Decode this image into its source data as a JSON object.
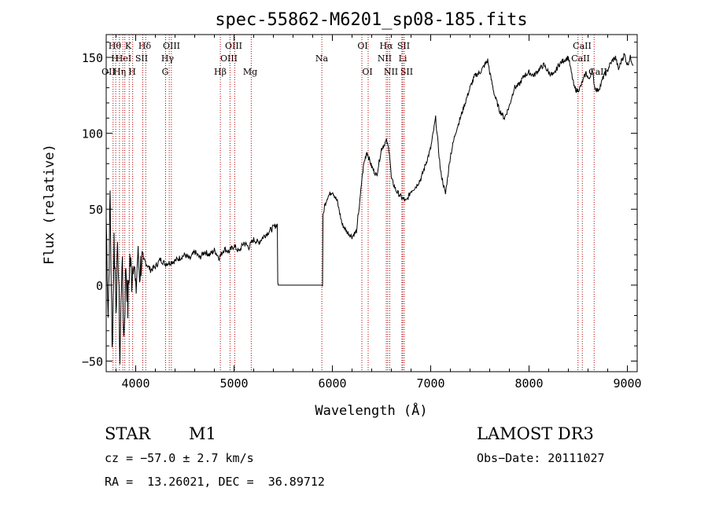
{
  "chart_data": {
    "type": "line",
    "title": "spec-55862-M6201_sp08-185.fits",
    "xlabel": "Wavelength (Å)",
    "ylabel": "Flux (relative)",
    "xlim": [
      3700,
      9100
    ],
    "ylim": [
      -57,
      165
    ],
    "xticks": [
      4000,
      5000,
      6000,
      7000,
      8000,
      9000
    ],
    "yticks": [
      -50,
      0,
      50,
      100,
      150
    ],
    "ytick_labels": [
      "−50",
      "0",
      "50",
      "100",
      "150"
    ],
    "grid": false,
    "series": [
      {
        "name": "flux",
        "x": [
          3700,
          3720,
          3740,
          3760,
          3780,
          3800,
          3820,
          3840,
          3860,
          3880,
          3900,
          3920,
          3940,
          3960,
          3980,
          4000,
          4020,
          4040,
          4060,
          4080,
          4100,
          4150,
          4200,
          4250,
          4300,
          4350,
          4400,
          4450,
          4500,
          4550,
          4600,
          4650,
          4700,
          4750,
          4800,
          4850,
          4900,
          4950,
          5000,
          5050,
          5100,
          5150,
          5200,
          5250,
          5300,
          5350,
          5400,
          5440,
          5445,
          5450,
          5700,
          5900,
          5905,
          5920,
          5950,
          6000,
          6050,
          6100,
          6150,
          6200,
          6250,
          6260,
          6280,
          6300,
          6320,
          6350,
          6400,
          6450,
          6500,
          6550,
          6580,
          6600,
          6650,
          6700,
          6750,
          6800,
          6850,
          6900,
          6950,
          7000,
          7050,
          7100,
          7150,
          7200,
          7250,
          7300,
          7350,
          7400,
          7450,
          7500,
          7550,
          7580,
          7600,
          7650,
          7700,
          7750,
          7800,
          7850,
          7900,
          7950,
          8000,
          8050,
          8100,
          8150,
          8200,
          8250,
          8300,
          8350,
          8400,
          8430,
          8460,
          8490,
          8520,
          8550,
          8580,
          8610,
          8640,
          8670,
          8700,
          8730,
          8760,
          8790,
          8820,
          8850,
          8880,
          8910,
          8940,
          8970,
          9000,
          9030,
          9060
        ],
        "values": [
          45,
          -20,
          60,
          -45,
          30,
          -10,
          25,
          -50,
          20,
          -35,
          15,
          -15,
          18,
          5,
          22,
          -8,
          20,
          8,
          18,
          6,
          15,
          10,
          12,
          17,
          14,
          15,
          16,
          18,
          20,
          17,
          22,
          18,
          22,
          20,
          23,
          18,
          24,
          22,
          26,
          22,
          28,
          25,
          30,
          28,
          32,
          35,
          38,
          40,
          2,
          0,
          0,
          0,
          45,
          52,
          58,
          62,
          55,
          40,
          35,
          32,
          36,
          45,
          55,
          70,
          80,
          88,
          78,
          72,
          90,
          95,
          88,
          70,
          62,
          58,
          55,
          62,
          65,
          70,
          80,
          90,
          110,
          75,
          60,
          85,
          100,
          110,
          120,
          130,
          138,
          140,
          145,
          148,
          140,
          125,
          115,
          110,
          118,
          130,
          132,
          138,
          140,
          138,
          142,
          145,
          140,
          138,
          145,
          148,
          150,
          140,
          130,
          128,
          130,
          135,
          140,
          135,
          142,
          130,
          128,
          132,
          138,
          140,
          145,
          148,
          150,
          142,
          148,
          152,
          145,
          150,
          145
        ]
      }
    ],
    "lines": [
      {
        "x": 3770,
        "labels": [
          "Hθ",
          "H"
        ]
      },
      {
        "x": 3797,
        "labels": [
          "OII"
        ]
      },
      {
        "x": 3835,
        "labels": [
          "Hη"
        ]
      },
      {
        "x": 3869,
        "labels": [
          "HeI"
        ]
      },
      {
        "x": 3889,
        "labels": [
          "H"
        ]
      },
      {
        "x": 3934,
        "labels": [
          "K"
        ]
      },
      {
        "x": 3969,
        "labels": [
          "H"
        ]
      },
      {
        "x": 4072,
        "labels": [
          "SII"
        ]
      },
      {
        "x": 4102,
        "labels": [
          "Hδ"
        ]
      },
      {
        "x": 4304,
        "labels": [
          "G"
        ]
      },
      {
        "x": 4341,
        "labels": [
          "Hγ"
        ]
      },
      {
        "x": 4363,
        "labels": [
          "OIII"
        ]
      },
      {
        "x": 4861,
        "labels": [
          "Hβ"
        ]
      },
      {
        "x": 4959,
        "labels": [
          "OIII"
        ]
      },
      {
        "x": 5007,
        "labels": [
          "OIII"
        ]
      },
      {
        "x": 5175,
        "labels": [
          "Mg"
        ]
      },
      {
        "x": 5893,
        "labels": [
          "Na"
        ]
      },
      {
        "x": 6300,
        "labels": [
          "OI"
        ]
      },
      {
        "x": 6364,
        "labels": [
          "OI"
        ]
      },
      {
        "x": 6548,
        "labels": [
          "NII"
        ]
      },
      {
        "x": 6563,
        "labels": [
          "Hα"
        ]
      },
      {
        "x": 6583,
        "labels": [
          "NII"
        ]
      },
      {
        "x": 6707,
        "labels": [
          "Li"
        ]
      },
      {
        "x": 6716,
        "labels": [
          "SII"
        ]
      },
      {
        "x": 6731,
        "labels": [
          "SII"
        ]
      },
      {
        "x": 8498,
        "labels": [
          "CaII"
        ]
      },
      {
        "x": 8542,
        "labels": [
          "CaII"
        ]
      },
      {
        "x": 8662,
        "labels": [
          "CaII"
        ]
      }
    ],
    "line_label_rows": [
      [
        "Hθ",
        "K",
        "Hδ",
        "OIII",
        "OIII",
        "OI",
        "Hα",
        "SII",
        "CaII"
      ],
      [
        "H",
        "HeI",
        "SII",
        "Hγ",
        "OIII",
        "Na",
        "NII",
        "Li",
        "CaII"
      ],
      [
        "OII",
        "Hη",
        "H",
        "G",
        "Hβ",
        "Mg",
        "OI",
        "NII",
        "SII",
        "CaII"
      ]
    ]
  },
  "info": {
    "object_type": "STAR",
    "subclass": "M1",
    "survey": "LAMOST DR3",
    "redshift": "cz = −57.0 ± 2.7 km/s",
    "obs_date": "Obs−Date: 20111027",
    "coords": "RA =  13.26021, DEC =  36.89712"
  },
  "colors": {
    "spectrum": "#000000",
    "emission_lines": "#b00000",
    "axes": "#000000"
  }
}
